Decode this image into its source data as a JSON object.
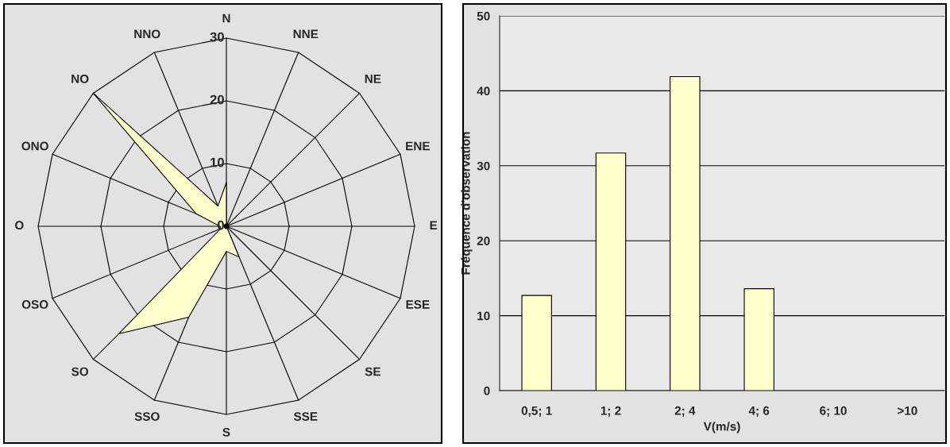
{
  "chart_data": [
    {
      "type": "radar",
      "categories": [
        "N",
        "NNE",
        "NE",
        "ENE",
        "E",
        "ESE",
        "SE",
        "SSE",
        "S",
        "SSO",
        "SO",
        "OSO",
        "O",
        "ONO",
        "NO",
        "NNO"
      ],
      "series": [
        {
          "color": "#ffffcc",
          "values": [
            7,
            0,
            0,
            0,
            0,
            0,
            0,
            5.3,
            4,
            15.7,
            24.2,
            1,
            1,
            5.2,
            30,
            3.5
          ]
        }
      ],
      "ylim": [
        0,
        30
      ],
      "yticks": [
        0,
        10,
        20,
        30
      ],
      "grid": true
    },
    {
      "type": "bar",
      "categories": [
        "0,5; 1",
        "1; 2",
        "2; 4",
        "4; 6",
        "6; 10",
        ">10"
      ],
      "values": [
        12.7,
        31.7,
        41.9,
        13.6,
        0,
        0
      ],
      "color": "#ffffcc",
      "xlabel": "V(m/s)",
      "ylabel": "Fréquence d'observation",
      "ylim": [
        0,
        50
      ],
      "yticks": [
        0,
        10,
        20,
        30,
        40,
        50
      ],
      "grid": "y"
    }
  ]
}
